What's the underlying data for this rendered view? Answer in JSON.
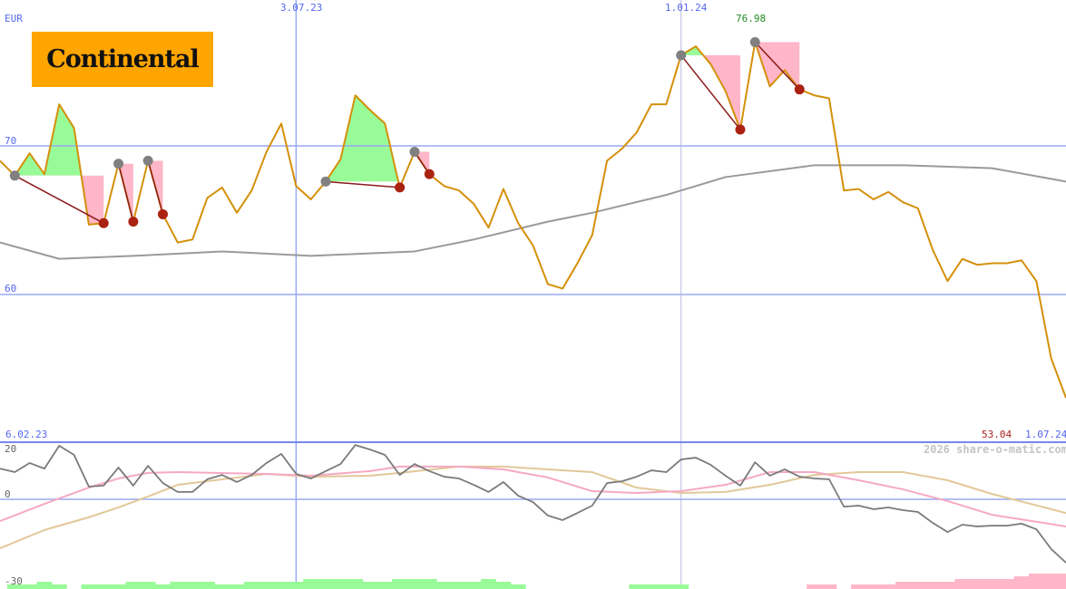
{
  "logo": {
    "text": "Continental",
    "background": "#ffa500"
  },
  "labels": {
    "currency": "EUR",
    "date_start": "6.02.23",
    "date_end": "1.07.24",
    "last_price": "53.04",
    "high_price": "76.98",
    "watermark": "2026 share-o-matic.com"
  },
  "colors": {
    "price": "#d4900a",
    "ma": "#9a9a9a",
    "osc": "#7a7a7a",
    "osc_signal_pink": "#f5a9c2",
    "osc_signal_tan": "#e2c898",
    "grid": "#99a8f4",
    "gain_fill": "#98fb98",
    "loss_fill": "#ffb6c8",
    "buy_marker": "#808080",
    "sell_marker": "#aa2211",
    "trade_line": "#8b1a1a",
    "label_blue": "#5566ee",
    "last_price_color": "#aa2222",
    "high_price_color": "#228b22"
  },
  "chart_data": [
    {
      "type": "line",
      "ylabel": "EUR",
      "ylim": [
        52,
        80
      ],
      "yticks": [
        {
          "value": 70,
          "label": "70"
        },
        {
          "value": 60,
          "label": "60"
        }
      ],
      "xticks": [
        {
          "index": 20,
          "label": "3.07.23"
        },
        {
          "index": 46,
          "label": "1.01.24"
        }
      ],
      "x_range": [
        "6.02.23",
        "1.07.24"
      ],
      "grid": true,
      "price": [
        69.0,
        68.0,
        69.5,
        68.1,
        72.8,
        71.2,
        64.7,
        64.8,
        68.8,
        64.9,
        69.0,
        65.4,
        63.5,
        63.7,
        66.5,
        67.2,
        65.5,
        67.0,
        69.6,
        71.5,
        67.3,
        66.4,
        67.6,
        69.1,
        73.4,
        72.4,
        71.5,
        67.2,
        69.6,
        68.1,
        67.3,
        67.0,
        66.1,
        64.5,
        67.1,
        64.8,
        63.3,
        60.7,
        60.4,
        62.1,
        64.0,
        69.0,
        69.8,
        70.9,
        72.8,
        72.8,
        76.1,
        76.7,
        75.5,
        73.7,
        71.1,
        76.98,
        74.0,
        75.1,
        73.8,
        73.4,
        73.2,
        67.0,
        67.1,
        66.4,
        66.9,
        66.2,
        65.8,
        63.0,
        60.9,
        62.4,
        62.0,
        62.1,
        62.1,
        62.3,
        60.9,
        55.7,
        53.04
      ],
      "moving_average": {
        "index": [
          0,
          4,
          9,
          15,
          21,
          28,
          32,
          37,
          40,
          45,
          49,
          55,
          61,
          67,
          72
        ],
        "values": [
          63.5,
          62.4,
          62.6,
          62.9,
          62.6,
          62.9,
          63.7,
          64.9,
          65.5,
          66.7,
          67.9,
          68.7,
          68.7,
          68.5,
          67.6
        ]
      },
      "trades": [
        {
          "entry": 1,
          "exit": 7
        },
        {
          "entry": 8,
          "exit": 9
        },
        {
          "entry": 10,
          "exit": 11
        },
        {
          "entry": 22,
          "exit": 27
        },
        {
          "entry": 28,
          "exit": 29
        },
        {
          "entry": 46,
          "exit": 50
        },
        {
          "entry": 51,
          "exit": 54
        }
      ]
    },
    {
      "type": "line",
      "ylim": [
        -32,
        23
      ],
      "yticks": [
        {
          "value": 20,
          "label": "20"
        },
        {
          "value": 0,
          "label": "0"
        },
        {
          "value": -30,
          "label": "-30"
        }
      ],
      "grid": true,
      "oscillator": [
        12.1,
        10.7,
        14.3,
        12.1,
        21.1,
        17.5,
        5.0,
        5.4,
        12.5,
        5.4,
        13.2,
        6.4,
        2.9,
        2.9,
        7.9,
        9.6,
        6.8,
        9.6,
        14.3,
        17.9,
        10.0,
        8.2,
        11.1,
        13.9,
        21.4,
        19.6,
        17.5,
        9.6,
        13.9,
        11.1,
        8.9,
        8.2,
        5.7,
        2.9,
        6.8,
        1.4,
        -1.1,
        -6.4,
        -8.2,
        -5.4,
        -2.5,
        6.4,
        7.1,
        8.9,
        11.4,
        10.7,
        15.7,
        16.4,
        13.6,
        9.3,
        5.4,
        14.6,
        9.3,
        11.8,
        8.9,
        8.2,
        7.9,
        -2.9,
        -2.5,
        -3.9,
        -3.2,
        -4.3,
        -5.0,
        -9.3,
        -12.9,
        -10.0,
        -10.7,
        -10.4,
        -10.4,
        -9.6,
        -11.8,
        -19.6,
        -25.0
      ],
      "signal_pink": {
        "index": [
          0,
          3,
          6,
          8,
          10,
          12,
          18,
          21,
          25,
          27,
          31,
          34,
          37,
          40,
          43,
          46,
          49,
          52,
          55,
          58,
          61,
          64,
          67,
          72
        ],
        "values": [
          -8.6,
          -1.8,
          4.6,
          8.2,
          10.4,
          10.7,
          10.0,
          9.3,
          11.1,
          12.9,
          12.9,
          11.8,
          8.6,
          3.2,
          2.5,
          3.2,
          5.7,
          10.7,
          10.7,
          7.5,
          3.9,
          -0.7,
          -6.1,
          -10.7
        ]
      },
      "signal_tan": {
        "index": [
          0,
          3,
          6,
          8,
          10,
          12,
          18,
          21,
          25,
          27,
          31,
          34,
          37,
          40,
          43,
          46,
          49,
          52,
          55,
          58,
          61,
          64,
          67,
          72
        ],
        "values": [
          -19.3,
          -12.1,
          -7.1,
          -3.2,
          1.1,
          5.7,
          10.0,
          8.9,
          9.3,
          10.4,
          12.9,
          12.9,
          11.8,
          10.7,
          4.6,
          2.5,
          2.9,
          5.7,
          9.6,
          10.7,
          10.7,
          7.5,
          2.1,
          -5.4
        ]
      },
      "signal_bars": [
        0,
        1,
        1,
        2,
        1,
        0,
        1,
        1,
        1,
        2,
        2,
        1,
        2,
        2,
        2,
        1,
        1,
        2,
        2,
        2,
        2,
        3,
        3,
        3,
        3,
        2,
        2,
        3,
        3,
        3,
        2,
        2,
        2,
        3,
        2,
        1,
        0,
        0,
        0,
        0,
        0,
        0,
        0,
        1,
        1,
        1,
        1,
        0,
        0,
        0,
        0,
        0,
        0,
        0,
        0,
        -1,
        -1,
        0,
        -1,
        -1,
        -1,
        -2,
        -2,
        -2,
        -2,
        -3,
        -3,
        -3,
        -3,
        -4,
        -5,
        -5,
        -5
      ]
    }
  ]
}
